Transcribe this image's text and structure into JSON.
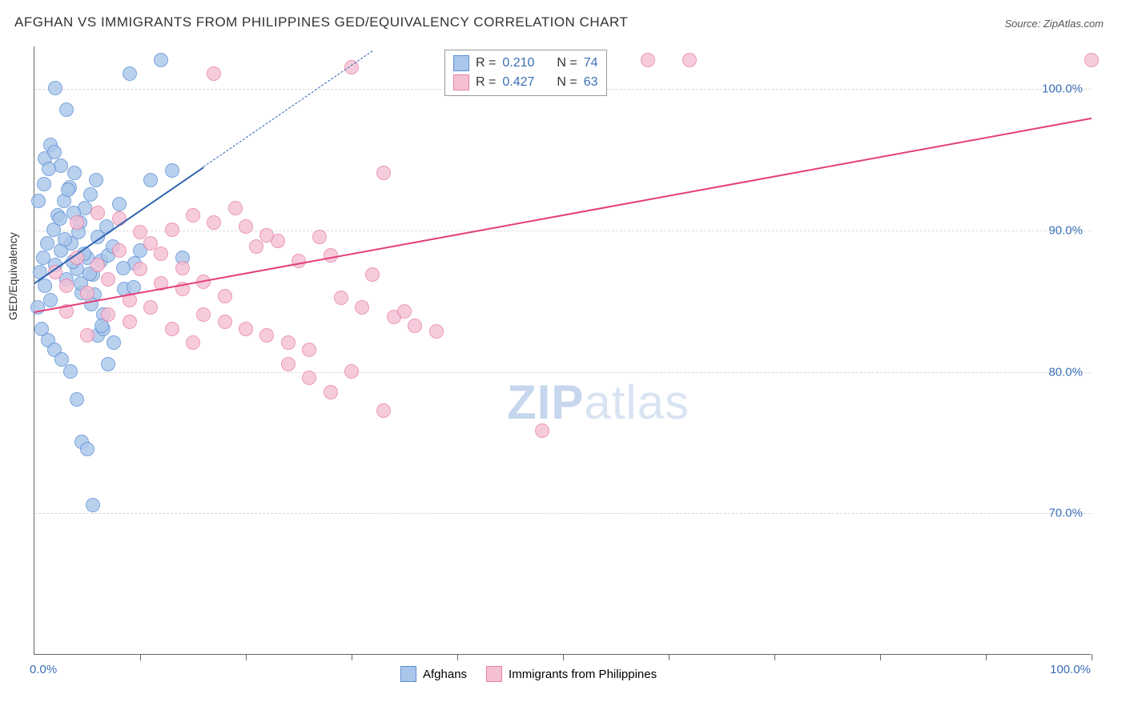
{
  "title": "AFGHAN VS IMMIGRANTS FROM PHILIPPINES GED/EQUIVALENCY CORRELATION CHART",
  "source": "Source: ZipAtlas.com",
  "ylabel": "GED/Equivalency",
  "watermark": {
    "zip": "ZIP",
    "atlas": "atlas"
  },
  "chart": {
    "type": "scatter",
    "background_color": "#ffffff",
    "grid_color": "#d9d9d9",
    "axis_color": "#666666",
    "xlim": [
      0,
      100
    ],
    "ylim": [
      60,
      103
    ],
    "x_axis_labels": [
      {
        "value": 0,
        "label": "0.0%"
      },
      {
        "value": 100,
        "label": "100.0%"
      }
    ],
    "y_axis_ticks": [
      {
        "value": 70,
        "label": "70.0%"
      },
      {
        "value": 80,
        "label": "80.0%"
      },
      {
        "value": 90,
        "label": "90.0%"
      },
      {
        "value": 100,
        "label": "100.0%"
      }
    ],
    "x_minor_ticks": [
      10,
      20,
      30,
      40,
      50,
      60,
      70,
      80,
      90,
      100
    ],
    "tick_label_color": "#3b6fb6",
    "tick_label_fontsize": 15,
    "marker_radius": 9,
    "marker_stroke_width": 1.5,
    "marker_fill_opacity": 0.25,
    "series": [
      {
        "name": "Afghans",
        "color_stroke": "#5b8fd6",
        "color_fill": "#aac6ea",
        "R": "0.210",
        "N": "74",
        "trend": {
          "x1": 0,
          "y1": 86.3,
          "x2": 16,
          "y2": 94.5,
          "dashed_extend_to_x": 32,
          "color": "#2e64b0",
          "width": 2
        },
        "points": [
          [
            0.5,
            87
          ],
          [
            0.8,
            88
          ],
          [
            1.0,
            86
          ],
          [
            1.2,
            89
          ],
          [
            1.5,
            85
          ],
          [
            1.8,
            90
          ],
          [
            2.0,
            87.5
          ],
          [
            2.2,
            91
          ],
          [
            2.5,
            88.5
          ],
          [
            2.8,
            92
          ],
          [
            3.0,
            86.5
          ],
          [
            3.3,
            93
          ],
          [
            3.5,
            89
          ],
          [
            3.8,
            94
          ],
          [
            4.0,
            87.2
          ],
          [
            4.3,
            90.5
          ],
          [
            4.5,
            85.5
          ],
          [
            4.8,
            91.5
          ],
          [
            5.0,
            88
          ],
          [
            5.3,
            92.5
          ],
          [
            5.5,
            86.8
          ],
          [
            5.8,
            93.5
          ],
          [
            6.0,
            89.5
          ],
          [
            6.3,
            87.8
          ],
          [
            6.5,
            84
          ],
          [
            6.8,
            90.2
          ],
          [
            7.0,
            88.2
          ],
          [
            7.5,
            82
          ],
          [
            8.0,
            91.8
          ],
          [
            8.5,
            85.8
          ],
          [
            9.0,
            101
          ],
          [
            9.5,
            87.6
          ],
          [
            2.0,
            100
          ],
          [
            3.0,
            98.5
          ],
          [
            4.0,
            78
          ],
          [
            4.5,
            75
          ],
          [
            5.0,
            74.5
          ],
          [
            5.5,
            70.5
          ],
          [
            6.0,
            82.5
          ],
          [
            6.5,
            83
          ],
          [
            7.0,
            80.5
          ],
          [
            1.0,
            95
          ],
          [
            1.5,
            96
          ],
          [
            2.5,
            94.5
          ],
          [
            3.2,
            92.8
          ],
          [
            3.7,
            91.2
          ],
          [
            4.2,
            89.8
          ],
          [
            4.7,
            88.3
          ],
          [
            5.2,
            86.9
          ],
          [
            5.7,
            85.4
          ],
          [
            0.3,
            84.5
          ],
          [
            0.7,
            83
          ],
          [
            1.3,
            82.2
          ],
          [
            1.9,
            81.5
          ],
          [
            2.6,
            80.8
          ],
          [
            3.4,
            80
          ],
          [
            0.4,
            92
          ],
          [
            0.9,
            93.2
          ],
          [
            1.4,
            94.3
          ],
          [
            1.9,
            95.5
          ],
          [
            2.4,
            90.8
          ],
          [
            2.9,
            89.3
          ],
          [
            3.6,
            87.7
          ],
          [
            4.4,
            86.2
          ],
          [
            5.4,
            84.7
          ],
          [
            6.4,
            83.2
          ],
          [
            7.4,
            88.8
          ],
          [
            8.4,
            87.3
          ],
          [
            9.4,
            85.9
          ],
          [
            10,
            88.5
          ],
          [
            11,
            93.5
          ],
          [
            12,
            102
          ],
          [
            13,
            94.2
          ],
          [
            14,
            88
          ]
        ]
      },
      {
        "name": "Immigants from Philippines",
        "legend_label": "Immigrants from Philippines",
        "color_stroke": "#e87fa8",
        "color_fill": "#f5c0d4",
        "R": "0.427",
        "N": "63",
        "trend": {
          "x1": 0,
          "y1": 84.3,
          "x2": 100,
          "y2": 98.0,
          "color": "#e43e7a",
          "width": 2
        },
        "points": [
          [
            2,
            87
          ],
          [
            3,
            86
          ],
          [
            4,
            88
          ],
          [
            5,
            85.5
          ],
          [
            6,
            87.5
          ],
          [
            7,
            86.5
          ],
          [
            8,
            88.5
          ],
          [
            9,
            85
          ],
          [
            10,
            87.2
          ],
          [
            11,
            89
          ],
          [
            12,
            86.2
          ],
          [
            13,
            90
          ],
          [
            14,
            85.8
          ],
          [
            15,
            91
          ],
          [
            16,
            84
          ],
          [
            17,
            90.5
          ],
          [
            18,
            83.5
          ],
          [
            19,
            91.5
          ],
          [
            20,
            83
          ],
          [
            21,
            88.8
          ],
          [
            22,
            82.5
          ],
          [
            23,
            89.2
          ],
          [
            24,
            82
          ],
          [
            25,
            87.8
          ],
          [
            26,
            81.5
          ],
          [
            27,
            89.5
          ],
          [
            28,
            88.2
          ],
          [
            29,
            85.2
          ],
          [
            30,
            80
          ],
          [
            31,
            84.5
          ],
          [
            32,
            86.8
          ],
          [
            33,
            94
          ],
          [
            34,
            83.8
          ],
          [
            35,
            84.2
          ],
          [
            36,
            83.2
          ],
          [
            38,
            82.8
          ],
          [
            17,
            101
          ],
          [
            30,
            101.5
          ],
          [
            33,
            77.2
          ],
          [
            24,
            80.5
          ],
          [
            26,
            79.5
          ],
          [
            28,
            78.5
          ],
          [
            13,
            83
          ],
          [
            15,
            82
          ],
          [
            11,
            84.5
          ],
          [
            9,
            83.5
          ],
          [
            7,
            84
          ],
          [
            5,
            82.5
          ],
          [
            3,
            84.2
          ],
          [
            48,
            75.8
          ],
          [
            58,
            102
          ],
          [
            62,
            102
          ],
          [
            100,
            102
          ],
          [
            4,
            90.5
          ],
          [
            6,
            91.2
          ],
          [
            8,
            90.8
          ],
          [
            10,
            89.8
          ],
          [
            12,
            88.3
          ],
          [
            14,
            87.3
          ],
          [
            16,
            86.3
          ],
          [
            18,
            85.3
          ],
          [
            20,
            90.2
          ],
          [
            22,
            89.6
          ]
        ]
      }
    ]
  },
  "legend_top": {
    "r_label": "R =",
    "n_label": "N =",
    "value_color": "#3b6fb6",
    "text_color": "#333333"
  },
  "legend_bottom_labels": [
    "Afghans",
    "Immigrants from Philippines"
  ]
}
